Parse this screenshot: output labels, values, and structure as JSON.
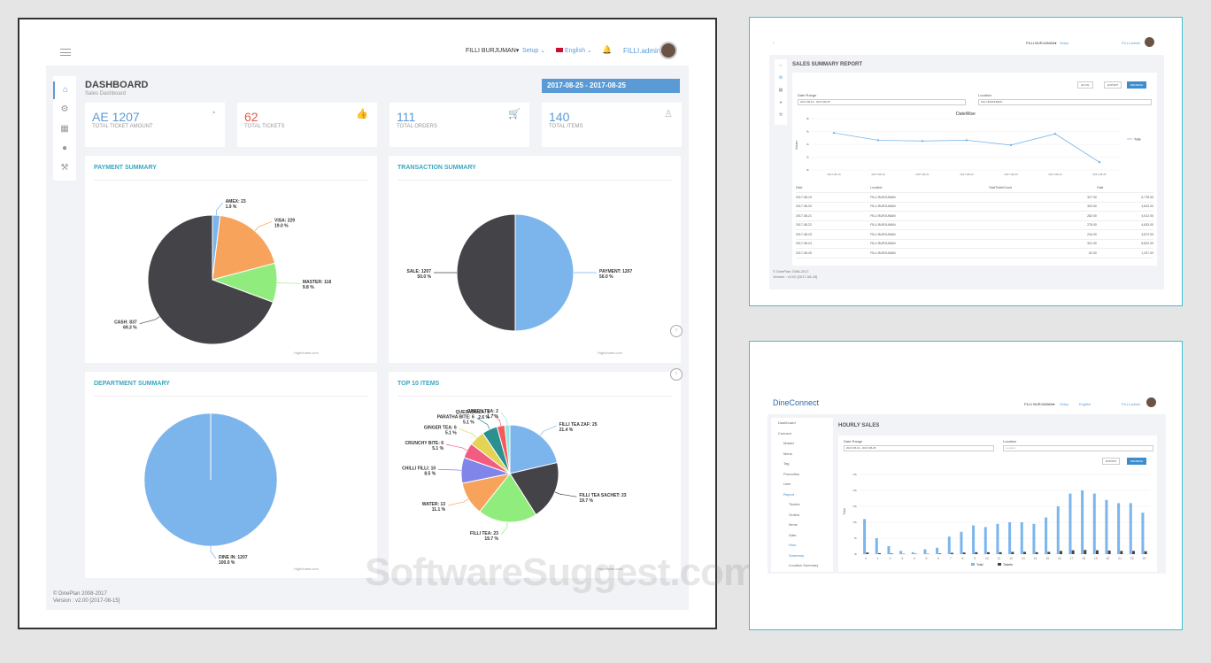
{
  "main": {
    "topbar": {
      "location": "FILLI BURJUMAN▾",
      "setup": "Setup ⌄",
      "language": "English ⌄",
      "user": "FILLI.admin"
    },
    "title": "DASHBOARD",
    "subtitle": "Sales Dashboard",
    "date_range": "2017-08-25 - 2017-08-25",
    "stats": [
      {
        "value": "AE 1207",
        "label": "TOTAL TICKET AMOUNT",
        "color": "#5b9bd5"
      },
      {
        "value": "62",
        "label": "TOTAL TICKETS",
        "color": "#e05a4f"
      },
      {
        "value": "111",
        "label": "TOTAL ORDERS",
        "color": "#5b9bd5"
      },
      {
        "value": "140",
        "label": "TOTAL ITEMS",
        "color": "#5b9bd5"
      }
    ],
    "credits": "Highcharts.com",
    "footer_line1": "© DinePlan 2008-2017",
    "footer_line2": "Version : v2.00 [2017-08-15]",
    "watermark": "SoftwareSuggest.com"
  },
  "chart_data": [
    {
      "type": "pie",
      "title": "PAYMENT SUMMARY",
      "categories": [
        "AMEX",
        "VISA",
        "MASTER",
        "CASH"
      ],
      "values": [
        23,
        229,
        118,
        837
      ],
      "percent_labels": [
        "1.9 %",
        "19.0 %",
        "9.8 %",
        "69.3 %"
      ],
      "colors": [
        "#7cb5ec",
        "#f7a35c",
        "#90ed7d",
        "#434348"
      ]
    },
    {
      "type": "pie",
      "title": "TRANSACTION SUMMARY",
      "categories": [
        "PAYMENT",
        "SALE"
      ],
      "values": [
        1207,
        1207
      ],
      "percent_labels": [
        "50.0 %",
        "50.0 %"
      ],
      "colors": [
        "#7cb5ec",
        "#434348"
      ]
    },
    {
      "type": "pie",
      "title": "DEPARTMENT SUMMARY",
      "categories": [
        "DINE IN"
      ],
      "values": [
        1207
      ],
      "percent_labels": [
        "100.0 %"
      ],
      "colors": [
        "#7cb5ec"
      ]
    },
    {
      "type": "pie",
      "title": "TOP 10 ITEMS",
      "categories": [
        "FILLI TEA ZAF",
        "FILLI TEA SACHET",
        "FILLI TEA",
        "WATER",
        "CHILLI FILLI",
        "CRUNCHY BITE",
        "GINGER TEA",
        "PARATHA BITE",
        "QUESADILLA",
        "GREEN TEA"
      ],
      "values": [
        25,
        23,
        23,
        13,
        10,
        6,
        6,
        6,
        3,
        2
      ],
      "percent_labels": [
        "21.4 %",
        "19.7 %",
        "19.7 %",
        "11.1 %",
        "8.5 %",
        "5.1 %",
        "5.1 %",
        "5.1 %",
        "2.6 %",
        "1.7 %"
      ],
      "colors": [
        "#7cb5ec",
        "#434348",
        "#90ed7d",
        "#f7a35c",
        "#8085e9",
        "#f15c80",
        "#e4d354",
        "#2b908f",
        "#f45b5b",
        "#91e8e1"
      ]
    },
    {
      "type": "line",
      "title": "DateWise",
      "x": [
        "2017-08-19",
        "2017-08-20",
        "2017-08-21",
        "2017-08-22",
        "2017-08-23",
        "2017-08-24",
        "2017-08-25"
      ],
      "series": [
        {
          "name": "Total",
          "values": [
            5778,
            4623,
            4512,
            4633,
            3872,
            5622,
            1207
          ]
        }
      ],
      "y_ticks": [
        "8k",
        "6k",
        "4k",
        "2k",
        "0k"
      ],
      "ylabel": "Values",
      "ylim": [
        0,
        8000
      ]
    },
    {
      "type": "bar",
      "title": "",
      "x": [
        "0",
        "1",
        "2",
        "3",
        "4",
        "5",
        "6",
        "7",
        "8",
        "9",
        "10",
        "11",
        "12",
        "13",
        "14",
        "15",
        "16",
        "17",
        "18",
        "19",
        "20",
        "21",
        "22",
        "23"
      ],
      "series": [
        {
          "name": "Total",
          "values": [
            11,
            5,
            2.5,
            1,
            0.6,
            1.5,
            2,
            5.5,
            7,
            9,
            8.5,
            9.5,
            10,
            10,
            9.5,
            11.5,
            15,
            19,
            20,
            19,
            17,
            16,
            16,
            13
          ]
        },
        {
          "name": "Tickets",
          "values": [
            0.5,
            0.3,
            0.2,
            0.1,
            0.1,
            0.1,
            0.2,
            0.4,
            0.5,
            0.6,
            0.6,
            0.6,
            0.7,
            0.7,
            0.6,
            0.7,
            1,
            1.2,
            1.3,
            1.2,
            1.1,
            1,
            1,
            0.9
          ]
        }
      ],
      "y_ticks": [
        "25k",
        "20k",
        "15k",
        "10k",
        "5k",
        "0k"
      ],
      "ylabel": "Total",
      "ylim": [
        0,
        25
      ],
      "colors": [
        "#7cb5ec",
        "#434348"
      ]
    }
  ],
  "sales_summary": {
    "location_top": "FILLI BURJUMAN▾",
    "setup": "Setup",
    "user": "FILLI.admin",
    "title": "SALES SUMMARY REPORT",
    "btn_all": "All CSL",
    "btn_export": "EXPORT",
    "btn_refresh": "REFRESH",
    "date_label": "Date Range",
    "date_value": "2017-08-19 - 2017-08-25",
    "location_label": "Location",
    "location_value": "FILLI BURJUMAN",
    "headers": [
      "Date",
      "Location",
      "TotalTicketCount",
      "Total"
    ],
    "rows": [
      [
        "2017-08-19",
        "FILLI BURJUMAN",
        "327.00",
        "5,778.00"
      ],
      [
        "2017-08-20",
        "FILLI BURJUMAN",
        "303.00",
        "4,623.00"
      ],
      [
        "2017-08-21",
        "FILLI BURJUMAN",
        "282.00",
        "4,512.00"
      ],
      [
        "2017-08-22",
        "FILLI BURJUMAN",
        "278.00",
        "4,633.00"
      ],
      [
        "2017-08-23",
        "FILLI BURJUMAN",
        "234.00",
        "3,872.00"
      ],
      [
        "2017-08-24",
        "FILLI BURJUMAN",
        "321.00",
        "5,622.00"
      ],
      [
        "2017-08-25",
        "FILLI BURJUMAN",
        "62.00",
        "1,207.00"
      ]
    ],
    "footer1": "© DinePlan 2008-2017",
    "footer2": "Version : v2.00 [2017-08-15]"
  },
  "hourly": {
    "logo": "DineConnect",
    "location_top": "FILLI BURJUMAN▾",
    "setup": "Setup",
    "language": "English",
    "user": "FILLI.admin",
    "title": "HOURLY SALES",
    "date_label": "Date Range",
    "date_value": "2017-08-19 - 2017-08-25",
    "location_label": "Location",
    "location_placeholder": "Location",
    "btn_export": "EXPORT",
    "btn_refresh": "REFRESH",
    "menu": [
      {
        "label": "Dashboard",
        "level": 0,
        "active": false
      },
      {
        "label": "Connect",
        "level": 0,
        "active": false
      },
      {
        "label": "Master",
        "level": 1,
        "active": false
      },
      {
        "label": "Menu",
        "level": 1,
        "active": false
      },
      {
        "label": "Tag",
        "level": 1,
        "active": false
      },
      {
        "label": "Promotion",
        "level": 1,
        "active": false
      },
      {
        "label": "User",
        "level": 1,
        "active": false
      },
      {
        "label": "Report",
        "level": 1,
        "active": true
      },
      {
        "label": "Tickets",
        "level": 2,
        "active": false
      },
      {
        "label": "Orders",
        "level": 2,
        "active": false
      },
      {
        "label": "Items",
        "level": 2,
        "active": false
      },
      {
        "label": "Date",
        "level": 2,
        "active": false
      },
      {
        "label": "Hour",
        "level": 2,
        "active": true
      },
      {
        "label": "Summary",
        "level": 2,
        "active": true
      },
      {
        "label": "Location Summary",
        "level": 2,
        "active": false
      }
    ]
  }
}
